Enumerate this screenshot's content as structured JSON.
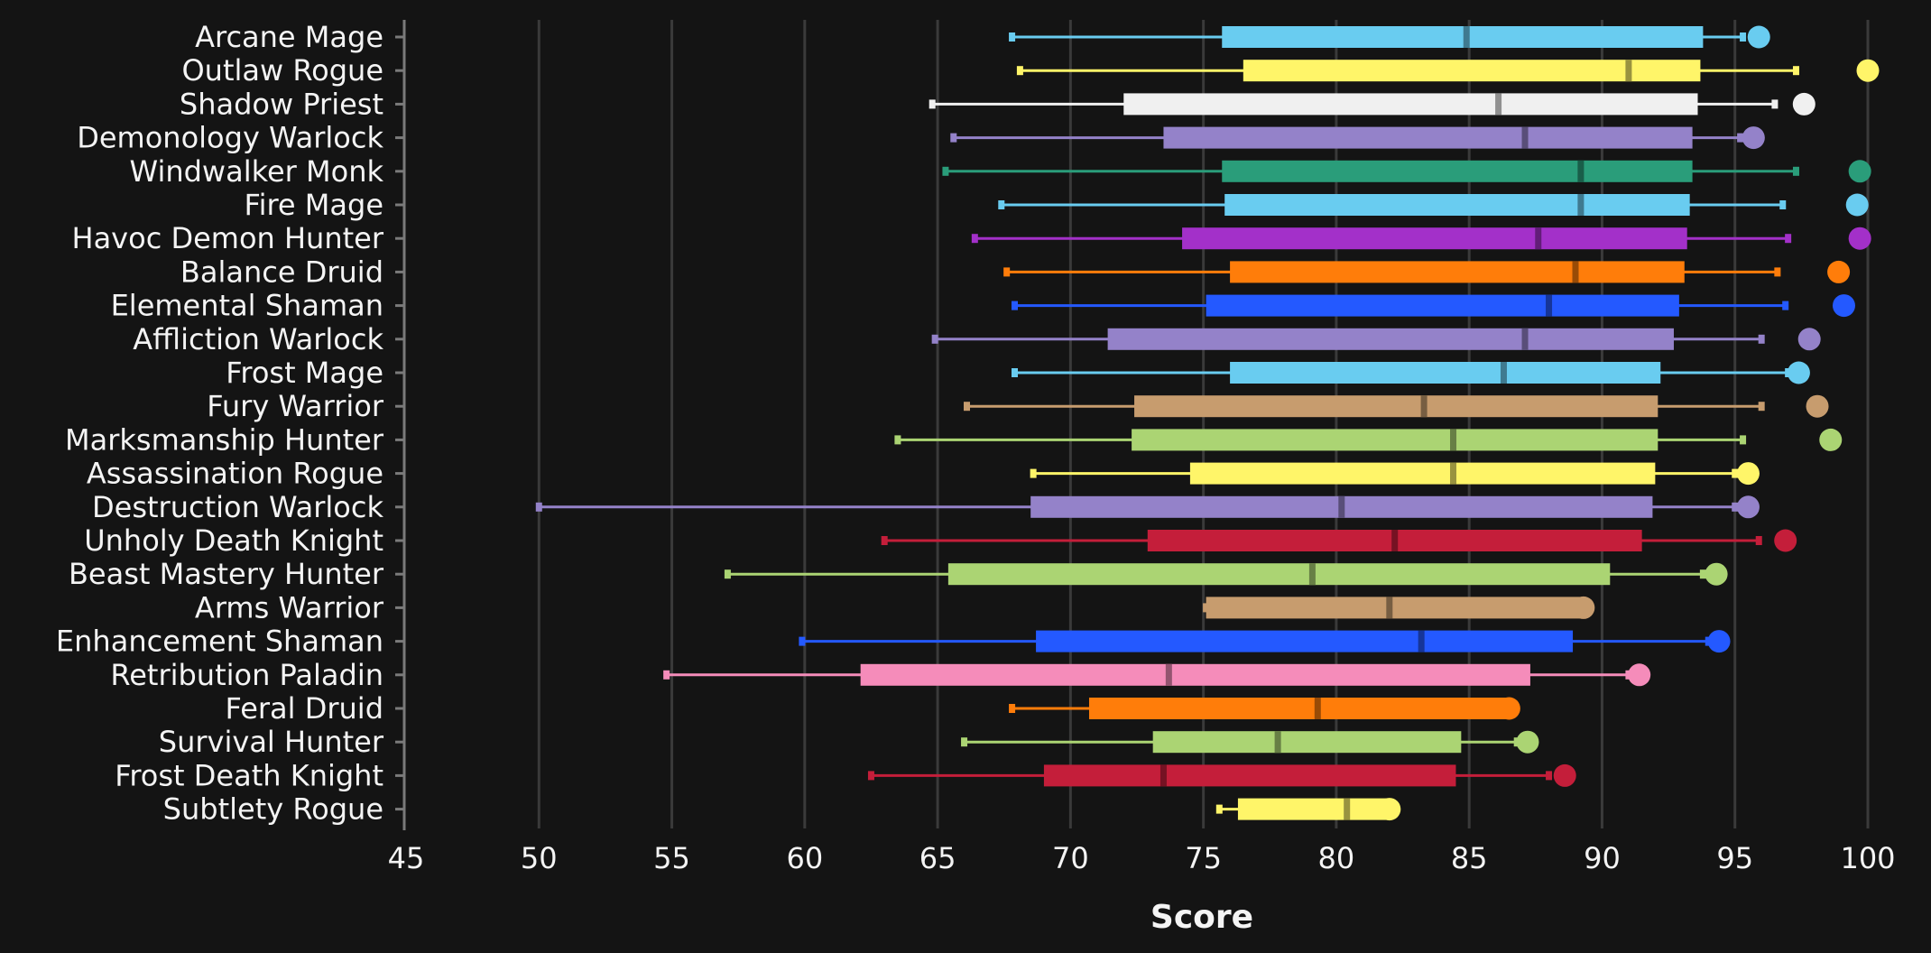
{
  "chart_data": {
    "type": "box",
    "title": "",
    "xlabel": "Score",
    "ylabel": "",
    "xlim": [
      45,
      100
    ],
    "xticks": [
      45,
      50,
      55,
      60,
      65,
      70,
      75,
      80,
      85,
      90,
      95,
      100
    ],
    "grid": true,
    "series": [
      {
        "name": "Arcane Mage",
        "color": "#69ccf0",
        "min": 67.8,
        "q1": 75.7,
        "median": 84.9,
        "q3": 93.8,
        "max": 95.3,
        "top": 95.9
      },
      {
        "name": "Outlaw Rogue",
        "color": "#fff569",
        "min": 68.1,
        "q1": 76.5,
        "median": 91.0,
        "q3": 93.7,
        "max": 97.3,
        "top": 100.0
      },
      {
        "name": "Shadow Priest",
        "color": "#f0f0f0",
        "min": 64.8,
        "q1": 72.0,
        "median": 86.1,
        "q3": 93.6,
        "max": 96.5,
        "top": 97.6
      },
      {
        "name": "Demonology Warlock",
        "color": "#9482c9",
        "min": 65.6,
        "q1": 73.5,
        "median": 87.1,
        "q3": 93.4,
        "max": 95.2,
        "top": 95.7
      },
      {
        "name": "Windwalker Monk",
        "color": "#2a9d7a",
        "min": 65.3,
        "q1": 75.7,
        "median": 89.2,
        "q3": 93.4,
        "max": 97.3,
        "top": 99.7
      },
      {
        "name": "Fire Mage",
        "color": "#69ccf0",
        "min": 67.4,
        "q1": 75.8,
        "median": 89.2,
        "q3": 93.3,
        "max": 96.8,
        "top": 99.6
      },
      {
        "name": "Havoc Demon Hunter",
        "color": "#a330c9",
        "min": 66.4,
        "q1": 74.2,
        "median": 87.6,
        "q3": 93.2,
        "max": 97.0,
        "top": 99.7
      },
      {
        "name": "Balance Druid",
        "color": "#ff7d0a",
        "min": 67.6,
        "q1": 76.0,
        "median": 89.0,
        "q3": 93.1,
        "max": 96.6,
        "top": 98.9
      },
      {
        "name": "Elemental Shaman",
        "color": "#2459ff",
        "min": 67.9,
        "q1": 75.1,
        "median": 88.0,
        "q3": 92.9,
        "max": 96.9,
        "top": 99.1
      },
      {
        "name": "Affliction Warlock",
        "color": "#9482c9",
        "min": 64.9,
        "q1": 71.4,
        "median": 87.1,
        "q3": 92.7,
        "max": 96.0,
        "top": 97.8
      },
      {
        "name": "Frost Mage",
        "color": "#69ccf0",
        "min": 67.9,
        "q1": 76.0,
        "median": 86.3,
        "q3": 92.2,
        "max": 97.0,
        "top": 97.4
      },
      {
        "name": "Fury Warrior",
        "color": "#c79c6e",
        "min": 66.1,
        "q1": 72.4,
        "median": 83.3,
        "q3": 92.1,
        "max": 96.0,
        "top": 98.1
      },
      {
        "name": "Marksmanship Hunter",
        "color": "#abd473",
        "min": 63.5,
        "q1": 72.3,
        "median": 84.4,
        "q3": 92.1,
        "max": 95.3,
        "top": 98.6
      },
      {
        "name": "Assassination Rogue",
        "color": "#fff569",
        "min": 68.6,
        "q1": 74.5,
        "median": 84.4,
        "q3": 92.0,
        "max": 95.0,
        "top": 95.5
      },
      {
        "name": "Destruction Warlock",
        "color": "#9482c9",
        "min": 50.0,
        "q1": 68.5,
        "median": 80.2,
        "q3": 91.9,
        "max": 95.0,
        "top": 95.5
      },
      {
        "name": "Unholy Death Knight",
        "color": "#c41e3a",
        "min": 63.0,
        "q1": 72.9,
        "median": 82.2,
        "q3": 91.5,
        "max": 95.9,
        "top": 96.9
      },
      {
        "name": "Beast Mastery Hunter",
        "color": "#abd473",
        "min": 57.1,
        "q1": 65.4,
        "median": 79.1,
        "q3": 90.3,
        "max": 93.8,
        "top": 94.3
      },
      {
        "name": "Arms Warrior",
        "color": "#c79c6e",
        "min": 75.1,
        "q1": 75.1,
        "median": 82.0,
        "q3": 89.4,
        "max": 89.4,
        "top": 89.3
      },
      {
        "name": "Enhancement Shaman",
        "color": "#2459ff",
        "min": 59.9,
        "q1": 68.7,
        "median": 83.2,
        "q3": 88.9,
        "max": 94.0,
        "top": 94.4
      },
      {
        "name": "Retribution Paladin",
        "color": "#f58cba",
        "min": 54.8,
        "q1": 62.1,
        "median": 73.7,
        "q3": 87.3,
        "max": 91.0,
        "top": 91.4
      },
      {
        "name": "Feral Druid",
        "color": "#ff7d0a",
        "min": 67.8,
        "q1": 70.7,
        "median": 79.3,
        "q3": 86.4,
        "max": 86.4,
        "top": 86.5
      },
      {
        "name": "Survival Hunter",
        "color": "#abd473",
        "min": 66.0,
        "q1": 73.1,
        "median": 77.8,
        "q3": 84.7,
        "max": 86.8,
        "top": 87.2
      },
      {
        "name": "Frost Death Knight",
        "color": "#c41e3a",
        "min": 62.5,
        "q1": 69.0,
        "median": 73.5,
        "q3": 84.5,
        "max": 88.0,
        "top": 88.6
      },
      {
        "name": "Subtlety Rogue",
        "color": "#fff569",
        "min": 75.6,
        "q1": 76.3,
        "median": 80.4,
        "q3": 81.9,
        "max": 81.9,
        "top": 82.0
      }
    ]
  }
}
